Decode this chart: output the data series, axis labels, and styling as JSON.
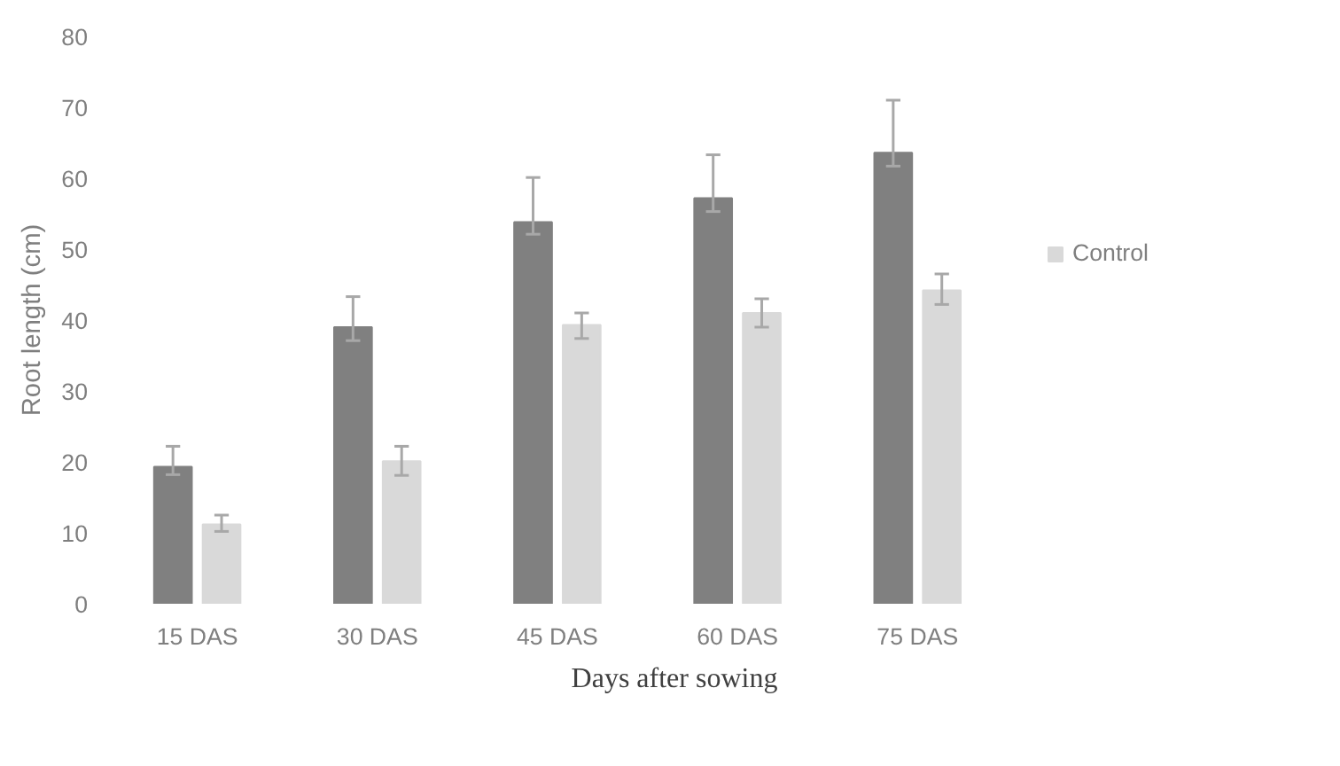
{
  "chart_data": {
    "type": "bar",
    "xlabel": "Days after sowing",
    "ylabel": "Root length (cm)",
    "categories": [
      "15 DAS",
      "30 DAS",
      "45 DAS",
      "60 DAS",
      "75 DAS"
    ],
    "series": [
      {
        "color": "#808080",
        "values": [
          19.3,
          39.0,
          53.8,
          57.2,
          63.6
        ],
        "errors": [
          [
            18.2,
            22.2
          ],
          [
            37.1,
            43.3
          ],
          [
            52.1,
            60.1
          ],
          [
            55.3,
            63.3
          ],
          [
            61.7,
            71.0
          ]
        ]
      },
      {
        "name": "Control",
        "color": "#d9d9d9",
        "values": [
          11.2,
          20.1,
          39.3,
          41.0,
          44.2
        ],
        "errors": [
          [
            10.2,
            12.5
          ],
          [
            18.1,
            22.2
          ],
          [
            37.4,
            41.0
          ],
          [
            39.0,
            43.0
          ],
          [
            42.2,
            46.5
          ]
        ]
      }
    ],
    "ylim": [
      0,
      80
    ],
    "yticks": [
      0,
      10,
      20,
      30,
      40,
      50,
      60,
      70,
      80
    ],
    "grid": false,
    "legend": "right"
  }
}
